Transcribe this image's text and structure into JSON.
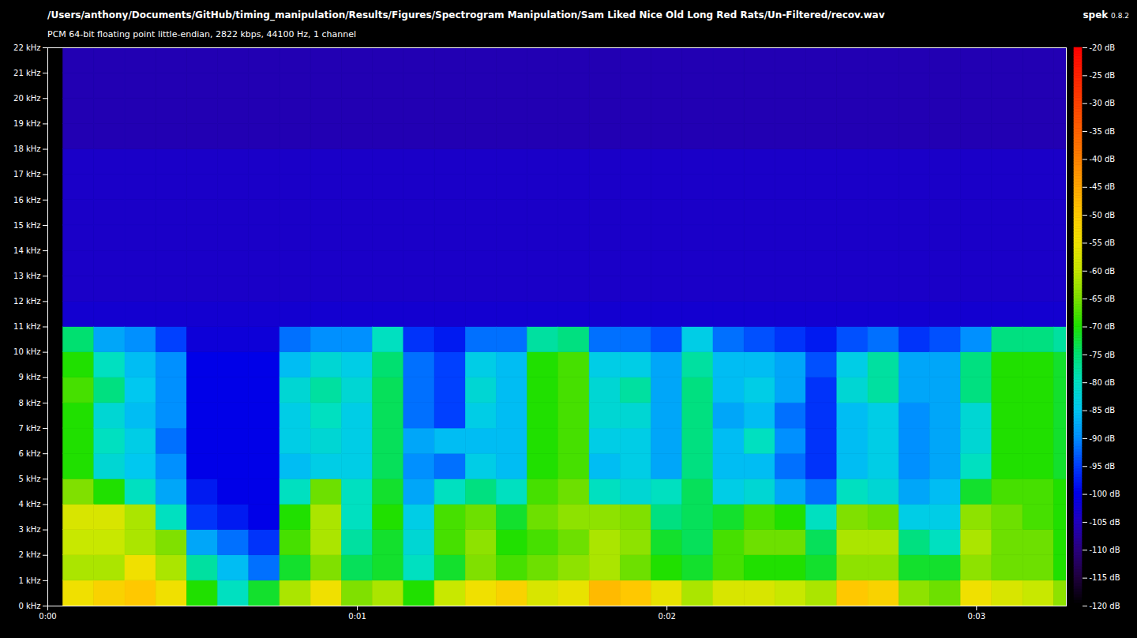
{
  "chart_data": {
    "type": "heatmap",
    "title": "/Users/anthony/Documents/GitHub/timing_manipulation/Results/Figures/Spectrogram Manipulation/Sam Liked Nice Old Long Red Rats/Un-Filtered/recov.wav",
    "subtitle": "PCM 64-bit floating point little-endian, 2822 kbps, 44100 Hz, 1 channel",
    "brand": "spek",
    "version": "0.8.2",
    "xlim": [
      0,
      3.29
    ],
    "xticks": [
      {
        "value": 0,
        "label": "0:00"
      },
      {
        "value": 1,
        "label": "0:01"
      },
      {
        "value": 2,
        "label": "0:02"
      },
      {
        "value": 3,
        "label": "0:03"
      }
    ],
    "ylim": [
      0,
      22
    ],
    "yticks": [
      {
        "value": 0,
        "label": "0 kHz"
      },
      {
        "value": 1,
        "label": "1 kHz"
      },
      {
        "value": 2,
        "label": "2 kHz"
      },
      {
        "value": 3,
        "label": "3 kHz"
      },
      {
        "value": 4,
        "label": "4 kHz"
      },
      {
        "value": 5,
        "label": "5 kHz"
      },
      {
        "value": 6,
        "label": "6 kHz"
      },
      {
        "value": 7,
        "label": "7 kHz"
      },
      {
        "value": 8,
        "label": "8 kHz"
      },
      {
        "value": 9,
        "label": "9 kHz"
      },
      {
        "value": 10,
        "label": "10 kHz"
      },
      {
        "value": 11,
        "label": "11 kHz"
      },
      {
        "value": 12,
        "label": "12 kHz"
      },
      {
        "value": 13,
        "label": "13 kHz"
      },
      {
        "value": 14,
        "label": "14 kHz"
      },
      {
        "value": 15,
        "label": "15 kHz"
      },
      {
        "value": 16,
        "label": "16 kHz"
      },
      {
        "value": 17,
        "label": "17 kHz"
      },
      {
        "value": 18,
        "label": "18 kHz"
      },
      {
        "value": 19,
        "label": "19 kHz"
      },
      {
        "value": 20,
        "label": "20 kHz"
      },
      {
        "value": 21,
        "label": "21 kHz"
      },
      {
        "value": 22,
        "label": "22 kHz"
      }
    ],
    "x_edges": [
      0.05,
      0.15,
      0.25,
      0.35,
      0.45,
      0.55,
      0.65,
      0.75,
      0.85,
      0.95,
      1.05,
      1.15,
      1.25,
      1.35,
      1.45,
      1.55,
      1.65,
      1.75,
      1.85,
      1.95,
      2.05,
      2.15,
      2.25,
      2.35,
      2.45,
      2.55,
      2.65,
      2.75,
      2.85,
      2.95,
      3.05,
      3.15,
      3.25,
      3.29
    ],
    "y_edges": [
      0,
      1,
      2,
      3,
      4,
      5,
      6,
      7,
      8,
      9,
      10,
      11,
      12,
      13,
      14,
      15,
      16,
      17,
      18,
      19,
      20,
      21,
      22
    ],
    "values": [
      [
        -55,
        -62,
        -60,
        -58,
        -65,
        -70,
        -70,
        -70,
        -68,
        -70,
        -75,
        -103,
        -104,
        -104,
        -104,
        -104,
        -104,
        -104,
        -106,
        -106,
        -106,
        -106
      ],
      [
        -52,
        -62,
        -60,
        -58,
        -70,
        -82,
        -80,
        -82,
        -76,
        -80,
        -88,
        -103,
        -104,
        -104,
        -104,
        -104,
        -104,
        -104,
        -106,
        -106,
        -106,
        -106
      ],
      [
        -50,
        -55,
        -62,
        -62,
        -80,
        -85,
        -84,
        -86,
        -85,
        -86,
        -90,
        -103,
        -104,
        -104,
        -104,
        -104,
        -104,
        -104,
        -106,
        -106,
        -106,
        -106
      ],
      [
        -55,
        -62,
        -65,
        -80,
        -88,
        -90,
        -92,
        -90,
        -90,
        -90,
        -95,
        -103,
        -104,
        -104,
        -104,
        -104,
        -104,
        -104,
        -106,
        -106,
        -106,
        -106
      ],
      [
        -70,
        -78,
        -88,
        -96,
        -98,
        -100,
        -100,
        -100,
        -100,
        -100,
        -102,
        -103,
        -104,
        -104,
        -104,
        -104,
        -104,
        -104,
        -106,
        -106,
        -106,
        -106
      ],
      [
        -80,
        -86,
        -92,
        -98,
        -100,
        -100,
        -100,
        -100,
        -100,
        -100,
        -102,
        -103,
        -104,
        -104,
        -104,
        -104,
        -104,
        -104,
        -106,
        -106,
        -106,
        -106
      ],
      [
        -72,
        -92,
        -96,
        -100,
        -100,
        -100,
        -100,
        -100,
        -100,
        -100,
        -102,
        -103,
        -104,
        -104,
        -104,
        -104,
        -104,
        -104,
        -106,
        -106,
        -106,
        -106
      ],
      [
        -62,
        -72,
        -68,
        -70,
        -80,
        -86,
        -84,
        -84,
        -82,
        -86,
        -92,
        -103,
        -104,
        -104,
        -104,
        -104,
        -104,
        -104,
        -106,
        -106,
        -106,
        -106
      ],
      [
        -55,
        -65,
        -62,
        -62,
        -66,
        -84,
        -82,
        -80,
        -78,
        -82,
        -90,
        -103,
        -104,
        -104,
        -104,
        -104,
        -104,
        -104,
        -106,
        -106,
        -106,
        -106
      ],
      [
        -65,
        -74,
        -78,
        -80,
        -80,
        -84,
        -84,
        -84,
        -82,
        -84,
        -90,
        -103,
        -104,
        -104,
        -104,
        -104,
        -104,
        -104,
        -106,
        -106,
        -106,
        -106
      ],
      [
        -62,
        -72,
        -72,
        -70,
        -72,
        -74,
        -74,
        -74,
        -74,
        -75,
        -80,
        -103,
        -104,
        -104,
        -104,
        -104,
        -104,
        -104,
        -106,
        -106,
        -106,
        -106
      ],
      [
        -70,
        -80,
        -82,
        -84,
        -88,
        -90,
        -88,
        -92,
        -92,
        -92,
        -96,
        -103,
        -104,
        -104,
        -104,
        -104,
        -104,
        -104,
        -106,
        -106,
        -106,
        -106
      ],
      [
        -60,
        -72,
        -68,
        -68,
        -80,
        -92,
        -86,
        -95,
        -95,
        -95,
        -98,
        -103,
        -104,
        -104,
        -104,
        -104,
        -104,
        -104,
        -106,
        -106,
        -106,
        -106
      ],
      [
        -55,
        -65,
        -64,
        -66,
        -76,
        -84,
        -86,
        -84,
        -82,
        -84,
        -92,
        -103,
        -104,
        -104,
        -104,
        -104,
        -104,
        -104,
        -106,
        -106,
        -106,
        -106
      ],
      [
        -52,
        -68,
        -70,
        -72,
        -80,
        -86,
        -86,
        -86,
        -86,
        -86,
        -92,
        -103,
        -104,
        -104,
        -104,
        -104,
        -104,
        -104,
        -106,
        -106,
        -106,
        -106
      ],
      [
        -58,
        -66,
        -68,
        -66,
        -68,
        -70,
        -70,
        -70,
        -70,
        -70,
        -78,
        -103,
        -104,
        -104,
        -104,
        -104,
        -104,
        -104,
        -106,
        -106,
        -106,
        -106
      ],
      [
        -56,
        -64,
        -66,
        -64,
        -66,
        -68,
        -68,
        -68,
        -68,
        -68,
        -76,
        -103,
        -104,
        -104,
        -104,
        -104,
        -104,
        -104,
        -106,
        -106,
        -106,
        -106
      ],
      [
        -48,
        -62,
        -62,
        -64,
        -80,
        -86,
        -84,
        -82,
        -82,
        -84,
        -92,
        -103,
        -104,
        -104,
        -104,
        -104,
        -104,
        -104,
        -106,
        -106,
        -106,
        -106
      ],
      [
        -50,
        -66,
        -64,
        -65,
        -82,
        -84,
        -84,
        -82,
        -78,
        -84,
        -92,
        -103,
        -104,
        -104,
        -104,
        -104,
        -104,
        -104,
        -106,
        -106,
        -106,
        -106
      ],
      [
        -56,
        -70,
        -72,
        -76,
        -80,
        -88,
        -88,
        -88,
        -88,
        -88,
        -94,
        -103,
        -104,
        -104,
        -104,
        -104,
        -104,
        -104,
        -106,
        -106,
        -106,
        -106
      ],
      [
        -62,
        -72,
        -74,
        -74,
        -74,
        -76,
        -76,
        -76,
        -76,
        -78,
        -84,
        -103,
        -104,
        -104,
        -104,
        -104,
        -104,
        -104,
        -106,
        -106,
        -106,
        -106
      ],
      [
        -58,
        -68,
        -68,
        -72,
        -84,
        -86,
        -86,
        -88,
        -86,
        -86,
        -92,
        -103,
        -104,
        -104,
        -104,
        -104,
        -104,
        -104,
        -106,
        -106,
        -106,
        -106
      ],
      [
        -58,
        -70,
        -66,
        -68,
        -82,
        -86,
        -80,
        -86,
        -84,
        -86,
        -94,
        -103,
        -104,
        -104,
        -104,
        -104,
        -104,
        -104,
        -106,
        -106,
        -106,
        -106
      ],
      [
        -60,
        -70,
        -66,
        -70,
        -88,
        -92,
        -90,
        -92,
        -88,
        -88,
        -96,
        -103,
        -104,
        -104,
        -104,
        -104,
        -104,
        -104,
        -106,
        -106,
        -106,
        -106
      ],
      [
        -62,
        -72,
        -74,
        -80,
        -92,
        -96,
        -96,
        -96,
        -96,
        -94,
        -98,
        -103,
        -104,
        -104,
        -104,
        -104,
        -104,
        -104,
        -106,
        -106,
        -106,
        -106
      ],
      [
        -50,
        -64,
        -62,
        -65,
        -80,
        -86,
        -86,
        -86,
        -82,
        -84,
        -94,
        -103,
        -104,
        -104,
        -104,
        -104,
        -104,
        -104,
        -106,
        -106,
        -106,
        -106
      ],
      [
        -52,
        -64,
        -62,
        -66,
        -82,
        -84,
        -84,
        -84,
        -78,
        -78,
        -92,
        -103,
        -104,
        -104,
        -104,
        -104,
        -104,
        -104,
        -106,
        -106,
        -106,
        -106
      ],
      [
        -64,
        -72,
        -76,
        -84,
        -88,
        -90,
        -90,
        -90,
        -88,
        -88,
        -96,
        -103,
        -104,
        -104,
        -104,
        -104,
        -104,
        -104,
        -106,
        -106,
        -106,
        -106
      ],
      [
        -66,
        -72,
        -80,
        -84,
        -86,
        -88,
        -88,
        -88,
        -88,
        -88,
        -94,
        -103,
        -104,
        -104,
        -104,
        -104,
        -104,
        -104,
        -106,
        -106,
        -106,
        -106
      ],
      [
        -55,
        -64,
        -62,
        -64,
        -72,
        -80,
        -82,
        -82,
        -76,
        -76,
        -90,
        -103,
        -104,
        -104,
        -104,
        -104,
        -104,
        -104,
        -106,
        -106,
        -106,
        -106
      ],
      [
        -58,
        -66,
        -66,
        -66,
        -68,
        -70,
        -70,
        -70,
        -70,
        -70,
        -76,
        -103,
        -104,
        -104,
        -104,
        -104,
        -104,
        -104,
        -106,
        -106,
        -106,
        -106
      ],
      [
        -60,
        -66,
        -66,
        -68,
        -68,
        -70,
        -70,
        -70,
        -70,
        -70,
        -76,
        -103,
        -104,
        -104,
        -104,
        -104,
        -104,
        -104,
        -106,
        -106,
        -106,
        -106
      ],
      [
        -64,
        -70,
        -70,
        -70,
        -70,
        -72,
        -72,
        -72,
        -72,
        -72,
        -78,
        -103,
        -104,
        -104,
        -104,
        -104,
        -104,
        -104,
        -106,
        -106,
        -106,
        -106
      ]
    ],
    "colorbar": {
      "range": [
        -120,
        -20
      ],
      "ticks": [
        {
          "value": -20,
          "label": "-20 dB"
        },
        {
          "value": -25,
          "label": "-25 dB"
        },
        {
          "value": -30,
          "label": "-30 dB"
        },
        {
          "value": -35,
          "label": "-35 dB"
        },
        {
          "value": -40,
          "label": "-40 dB"
        },
        {
          "value": -45,
          "label": "-45 dB"
        },
        {
          "value": -50,
          "label": "-50 dB"
        },
        {
          "value": -55,
          "label": "-55 dB"
        },
        {
          "value": -60,
          "label": "-60 dB"
        },
        {
          "value": -65,
          "label": "-65 dB"
        },
        {
          "value": -70,
          "label": "-70 dB"
        },
        {
          "value": -75,
          "label": "-75 dB"
        },
        {
          "value": -80,
          "label": "-80 dB"
        },
        {
          "value": -85,
          "label": "-85 dB"
        },
        {
          "value": -90,
          "label": "-90 dB"
        },
        {
          "value": -95,
          "label": "-95 dB"
        },
        {
          "value": -100,
          "label": "-100 dB"
        },
        {
          "value": -105,
          "label": "-105 dB"
        },
        {
          "value": -110,
          "label": "-110 dB"
        },
        {
          "value": -115,
          "label": "-115 dB"
        },
        {
          "value": -120,
          "label": "-120 dB"
        }
      ]
    }
  }
}
